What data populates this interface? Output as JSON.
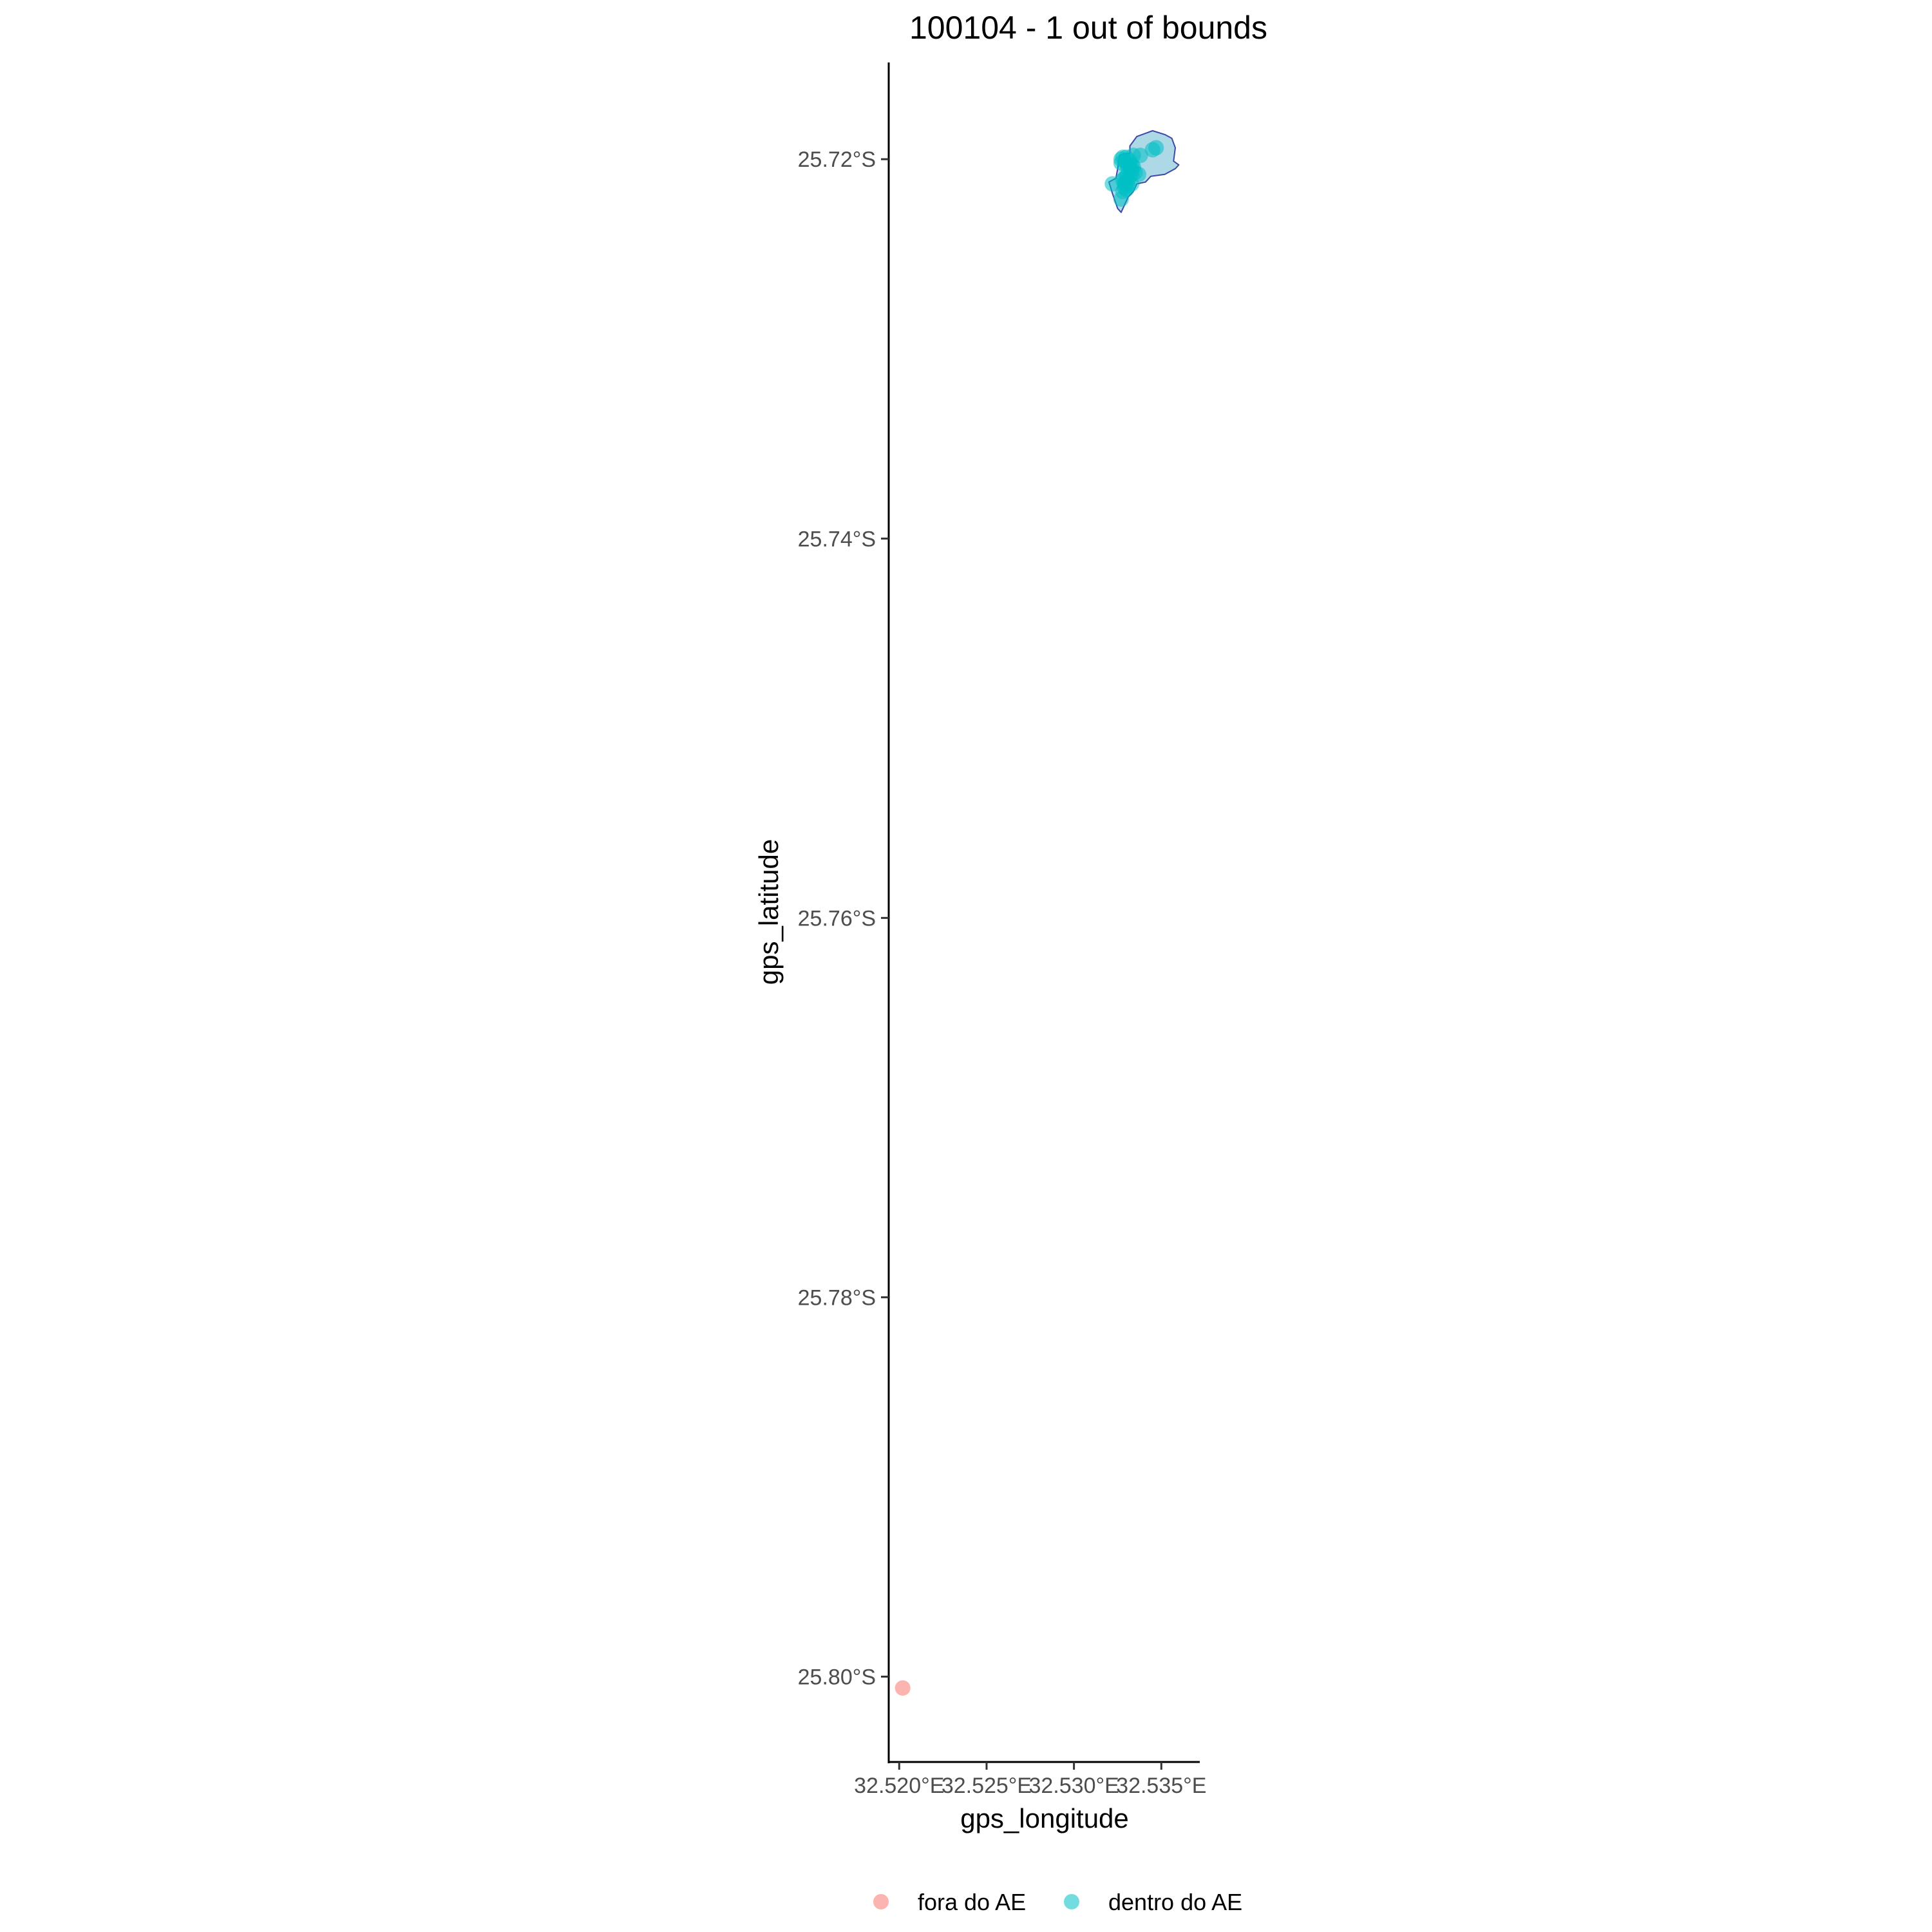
{
  "chart_data": {
    "type": "scatter",
    "title": "100104 - 1 out of bounds",
    "xlabel": "gps_longitude",
    "ylabel": "gps_latitude",
    "xlim": [
      32.5194,
      32.5372
    ],
    "ylim": [
      -25.8045,
      -25.7149
    ],
    "x_ticks": [
      {
        "value": 32.52,
        "label": "32.520°E"
      },
      {
        "value": 32.525,
        "label": "32.525°E"
      },
      {
        "value": 32.53,
        "label": "32.530°E"
      },
      {
        "value": 32.535,
        "label": "32.535°E"
      }
    ],
    "y_ticks": [
      {
        "value": -25.72,
        "label": "25.72°S"
      },
      {
        "value": -25.74,
        "label": "25.74°S"
      },
      {
        "value": -25.76,
        "label": "25.76°S"
      },
      {
        "value": -25.78,
        "label": "25.78°S"
      },
      {
        "value": -25.8,
        "label": "25.80°S"
      }
    ],
    "grid": false,
    "legend_position": "bottom",
    "area_polygon": {
      "fill": "#add8e6",
      "stroke": "#3f48a6",
      "points": [
        [
          32.5332,
          -25.7193
        ],
        [
          32.5336,
          -25.7188
        ],
        [
          32.5345,
          -25.7185
        ],
        [
          32.5352,
          -25.7187
        ],
        [
          32.5356,
          -25.7189
        ],
        [
          32.5358,
          -25.7194
        ],
        [
          32.5357,
          -25.7201
        ],
        [
          32.536,
          -25.7203
        ],
        [
          32.5358,
          -25.7205
        ],
        [
          32.5352,
          -25.7208
        ],
        [
          32.5344,
          -25.7209
        ],
        [
          32.5341,
          -25.7212
        ],
        [
          32.5336,
          -25.7213
        ],
        [
          32.5334,
          -25.7217
        ],
        [
          32.5331,
          -25.722
        ],
        [
          32.5329,
          -25.7224
        ],
        [
          32.5327,
          -25.7228
        ],
        [
          32.5325,
          -25.7226
        ],
        [
          32.5322,
          -25.7218
        ],
        [
          32.532,
          -25.7212
        ],
        [
          32.5324,
          -25.721
        ],
        [
          32.5325,
          -25.7205
        ],
        [
          32.5326,
          -25.7198
        ],
        [
          32.5329,
          -25.7197
        ],
        [
          32.5332,
          -25.7197
        ]
      ]
    },
    "series": [
      {
        "name": "fora do AE",
        "color": "#f8766d",
        "points": [
          [
            32.5202,
            -25.8006
          ]
        ]
      },
      {
        "name": "dentro do AE",
        "color": "#00bfc4",
        "points": [
          [
            32.5347,
            -25.7194
          ],
          [
            32.5345,
            -25.7195
          ],
          [
            32.5338,
            -25.7198
          ],
          [
            32.5334,
            -25.7198
          ],
          [
            32.533,
            -25.7199
          ],
          [
            32.5328,
            -25.7199
          ],
          [
            32.5327,
            -25.72
          ],
          [
            32.5329,
            -25.7201
          ],
          [
            32.5332,
            -25.7201
          ],
          [
            32.5327,
            -25.7202
          ],
          [
            32.5331,
            -25.7203
          ],
          [
            32.5333,
            -25.7203
          ],
          [
            32.5332,
            -25.7204
          ],
          [
            32.5334,
            -25.7204
          ],
          [
            32.5331,
            -25.7205
          ],
          [
            32.5333,
            -25.7206
          ],
          [
            32.5335,
            -25.7207
          ],
          [
            32.5337,
            -25.7208
          ],
          [
            32.5333,
            -25.7208
          ],
          [
            32.533,
            -25.7209
          ],
          [
            32.5329,
            -25.721
          ],
          [
            32.5328,
            -25.7211
          ],
          [
            32.5331,
            -25.7211
          ],
          [
            32.533,
            -25.7212
          ],
          [
            32.5333,
            -25.7213
          ],
          [
            32.5322,
            -25.7213
          ],
          [
            32.5329,
            -25.7213
          ],
          [
            32.5331,
            -25.7214
          ],
          [
            32.5329,
            -25.7215
          ],
          [
            32.533,
            -25.7216
          ],
          [
            32.5328,
            -25.7217
          ],
          [
            32.5327,
            -25.7221
          ]
        ]
      }
    ]
  }
}
